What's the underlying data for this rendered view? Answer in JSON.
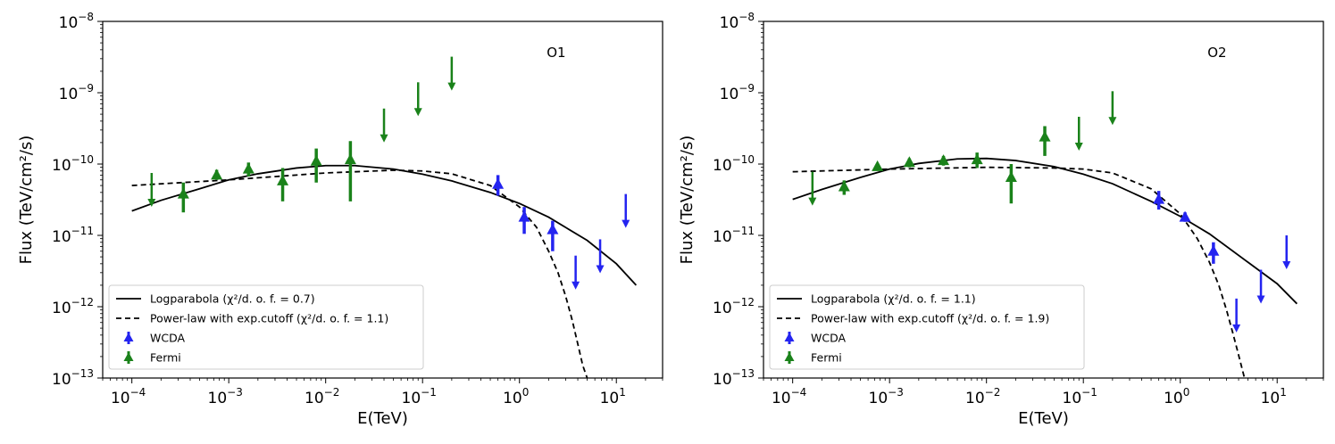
{
  "chart_data": [
    {
      "type": "scatter",
      "panel_label": "O1",
      "xlabel": "E(TeV)",
      "ylabel": "Flux (TeV/cm²/s)",
      "xscale": "log",
      "yscale": "log",
      "xlim": [
        5e-05,
        30
      ],
      "ylim": [
        1e-13,
        1e-08
      ],
      "xticks": [
        {
          "value": 0.0001,
          "base": "10",
          "exp": "−4"
        },
        {
          "value": 0.001,
          "base": "10",
          "exp": "−3"
        },
        {
          "value": 0.01,
          "base": "10",
          "exp": "−2"
        },
        {
          "value": 0.1,
          "base": "10",
          "exp": "−1"
        },
        {
          "value": 1,
          "base": "10",
          "exp": "0"
        },
        {
          "value": 10,
          "base": "10",
          "exp": "1"
        }
      ],
      "yticks": [
        {
          "value": 1e-13,
          "base": "10",
          "exp": "−13"
        },
        {
          "value": 1e-12,
          "base": "10",
          "exp": "−12"
        },
        {
          "value": 1e-11,
          "base": "10",
          "exp": "−11"
        },
        {
          "value": 1e-10,
          "base": "10",
          "exp": "−10"
        },
        {
          "value": 1e-09,
          "base": "10",
          "exp": "−9"
        },
        {
          "value": 1e-08,
          "base": "10",
          "exp": "−8"
        }
      ],
      "legend": {
        "position": "lower-left",
        "entries": [
          {
            "label": "Logparabola (χ²/d. o. f.  = 0.7)",
            "style": "solid"
          },
          {
            "label": "Power-law with exp.cutoff (χ²/d. o. f.  = 1.1)",
            "style": "dashed"
          },
          {
            "label": "WCDA",
            "style": "blue-marker"
          },
          {
            "label": "Fermi",
            "style": "green-marker"
          }
        ]
      },
      "series": [
        {
          "name": "Logparabola",
          "style": "solid",
          "points": [
            [
              0.0001,
              2.2e-11
            ],
            [
              0.0002,
              3.1e-11
            ],
            [
              0.0005,
              4.5e-11
            ],
            [
              0.001,
              6e-11
            ],
            [
              0.002,
              7.3e-11
            ],
            [
              0.005,
              8.8e-11
            ],
            [
              0.01,
              9.5e-11
            ],
            [
              0.02,
              9.5e-11
            ],
            [
              0.05,
              8.5e-11
            ],
            [
              0.1,
              7.2e-11
            ],
            [
              0.2,
              5.8e-11
            ],
            [
              0.5,
              4e-11
            ],
            [
              1,
              2.8e-11
            ],
            [
              2,
              1.8e-11
            ],
            [
              5,
              8.5e-12
            ],
            [
              10,
              4e-12
            ],
            [
              16,
              2e-12
            ]
          ]
        },
        {
          "name": "Power-law with exp.cutoff",
          "style": "dashed",
          "points": [
            [
              0.0001,
              5e-11
            ],
            [
              0.001,
              6e-11
            ],
            [
              0.01,
              7.5e-11
            ],
            [
              0.05,
              8.2e-11
            ],
            [
              0.1,
              8e-11
            ],
            [
              0.2,
              7.3e-11
            ],
            [
              0.5,
              5e-11
            ],
            [
              1,
              2.5e-11
            ],
            [
              1.5,
              1.3e-11
            ],
            [
              2,
              6e-12
            ],
            [
              2.5,
              3e-12
            ],
            [
              3,
              1.4e-12
            ],
            [
              3.5,
              6.5e-13
            ],
            [
              4,
              3e-13
            ],
            [
              4.5,
              1.5e-13
            ],
            [
              5,
              1e-13
            ]
          ]
        },
        {
          "name": "Fermi",
          "color": "#1a821a",
          "points": [
            {
              "x": 0.00034,
              "y": 3.8e-11,
              "lo": 2.1e-11,
              "hi": 5.5e-11
            },
            {
              "x": 0.00075,
              "y": 7e-11,
              "lo": 6e-11,
              "hi": 8.3e-11
            },
            {
              "x": 0.0016,
              "y": 8.5e-11,
              "lo": 6.7e-11,
              "hi": 1.05e-10
            },
            {
              "x": 0.0036,
              "y": 5.8e-11,
              "lo": 3e-11,
              "hi": 8.8e-11
            },
            {
              "x": 0.008,
              "y": 1.1e-10,
              "lo": 5.5e-11,
              "hi": 1.65e-10
            },
            {
              "x": 0.018,
              "y": 1.15e-10,
              "lo": 3e-11,
              "hi": 2.1e-10
            }
          ]
        },
        {
          "name": "Fermi upper limits",
          "color": "#1a821a",
          "upper_limits": [
            {
              "x": 0.00016,
              "y": 7.5e-11
            },
            {
              "x": 0.04,
              "y": 6e-10
            },
            {
              "x": 0.09,
              "y": 1.4e-09
            },
            {
              "x": 0.2,
              "y": 3.2e-09
            }
          ]
        },
        {
          "name": "WCDA",
          "color": "#2424f0",
          "points": [
            {
              "x": 0.6,
              "y": 5.2e-11,
              "lo": 3.6e-11,
              "hi": 7e-11
            },
            {
              "x": 1.12,
              "y": 1.8e-11,
              "lo": 1.05e-11,
              "hi": 2.5e-11
            },
            {
              "x": 2.2,
              "y": 1.2e-11,
              "lo": 6e-12,
              "hi": 1.6e-11
            }
          ]
        },
        {
          "name": "WCDA upper limits",
          "color": "#2424f0",
          "upper_limits": [
            {
              "x": 3.8,
              "y": 5.2e-12
            },
            {
              "x": 6.8,
              "y": 8.8e-12
            },
            {
              "x": 12.5,
              "y": 3.8e-11
            }
          ]
        }
      ]
    },
    {
      "type": "scatter",
      "panel_label": "O2",
      "xlabel": "E(TeV)",
      "ylabel": "Flux (TeV/cm²/s)",
      "xscale": "log",
      "yscale": "log",
      "xlim": [
        5e-05,
        30
      ],
      "ylim": [
        1e-13,
        1e-08
      ],
      "xticks": [
        {
          "value": 0.0001,
          "base": "10",
          "exp": "−4"
        },
        {
          "value": 0.001,
          "base": "10",
          "exp": "−3"
        },
        {
          "value": 0.01,
          "base": "10",
          "exp": "−2"
        },
        {
          "value": 0.1,
          "base": "10",
          "exp": "−1"
        },
        {
          "value": 1,
          "base": "10",
          "exp": "0"
        },
        {
          "value": 10,
          "base": "10",
          "exp": "1"
        }
      ],
      "yticks": [
        {
          "value": 1e-13,
          "base": "10",
          "exp": "−13"
        },
        {
          "value": 1e-12,
          "base": "10",
          "exp": "−12"
        },
        {
          "value": 1e-11,
          "base": "10",
          "exp": "−11"
        },
        {
          "value": 1e-10,
          "base": "10",
          "exp": "−10"
        },
        {
          "value": 1e-09,
          "base": "10",
          "exp": "−9"
        },
        {
          "value": 1e-08,
          "base": "10",
          "exp": "−8"
        }
      ],
      "legend": {
        "position": "lower-left",
        "entries": [
          {
            "label": "Logparabola (χ²/d. o. f.  = 1.1)",
            "style": "solid"
          },
          {
            "label": "Power-law with exp.cutoff (χ²/d. o. f.  = 1.9)",
            "style": "dashed"
          },
          {
            "label": "WCDA",
            "style": "blue-marker"
          },
          {
            "label": "Fermi",
            "style": "green-marker"
          }
        ]
      },
      "series": [
        {
          "name": "Logparabola",
          "style": "solid",
          "points": [
            [
              0.0001,
              3.2e-11
            ],
            [
              0.0002,
              4.4e-11
            ],
            [
              0.0005,
              6.5e-11
            ],
            [
              0.001,
              8.5e-11
            ],
            [
              0.002,
              1.02e-10
            ],
            [
              0.005,
              1.18e-10
            ],
            [
              0.01,
              1.2e-10
            ],
            [
              0.02,
              1.12e-10
            ],
            [
              0.05,
              9.2e-11
            ],
            [
              0.1,
              7.2e-11
            ],
            [
              0.2,
              5.3e-11
            ],
            [
              0.5,
              3e-11
            ],
            [
              1,
              1.85e-11
            ],
            [
              2,
              1.05e-11
            ],
            [
              5,
              4.2e-12
            ],
            [
              10,
              2.1e-12
            ],
            [
              16,
              1.1e-12
            ]
          ]
        },
        {
          "name": "Power-law with exp.cutoff",
          "style": "dashed",
          "points": [
            [
              0.0001,
              7.8e-11
            ],
            [
              0.001,
              8.5e-11
            ],
            [
              0.01,
              9e-11
            ],
            [
              0.05,
              8.8e-11
            ],
            [
              0.1,
              8.5e-11
            ],
            [
              0.2,
              7.5e-11
            ],
            [
              0.5,
              4.5e-11
            ],
            [
              1,
              2e-11
            ],
            [
              1.5,
              9e-12
            ],
            [
              2,
              4.2e-12
            ],
            [
              2.5,
              2e-12
            ],
            [
              3,
              9e-13
            ],
            [
              3.5,
              4.2e-13
            ],
            [
              4,
              2.1e-13
            ],
            [
              4.6,
              1e-13
            ]
          ]
        },
        {
          "name": "Fermi",
          "color": "#1a821a",
          "points": [
            {
              "x": 0.00034,
              "y": 4.8e-11,
              "lo": 3.7e-11,
              "hi": 5.9e-11
            },
            {
              "x": 0.00075,
              "y": 9.2e-11,
              "lo": 8.3e-11,
              "hi": 1e-10
            },
            {
              "x": 0.0016,
              "y": 1.05e-10,
              "lo": 9e-11,
              "hi": 1.2e-10
            },
            {
              "x": 0.0036,
              "y": 1.12e-10,
              "lo": 9.5e-11,
              "hi": 1.3e-10
            },
            {
              "x": 0.008,
              "y": 1.15e-10,
              "lo": 8.8e-11,
              "hi": 1.45e-10
            },
            {
              "x": 0.018,
              "y": 6.5e-11,
              "lo": 2.8e-11,
              "hi": 1e-10
            },
            {
              "x": 0.04,
              "y": 2.4e-10,
              "lo": 1.3e-10,
              "hi": 3.4e-10
            }
          ]
        },
        {
          "name": "Fermi upper limits",
          "color": "#1a821a",
          "upper_limits": [
            {
              "x": 0.00016,
              "y": 7.8e-11
            },
            {
              "x": 0.09,
              "y": 4.6e-10
            },
            {
              "x": 0.2,
              "y": 1.05e-09
            }
          ]
        },
        {
          "name": "WCDA",
          "color": "#2424f0",
          "points": [
            {
              "x": 0.6,
              "y": 3.2e-11,
              "lo": 2.3e-11,
              "hi": 4.2e-11
            },
            {
              "x": 1.12,
              "y": 1.8e-11,
              "lo": 1.55e-11,
              "hi": 2.1e-11
            },
            {
              "x": 2.2,
              "y": 6e-12,
              "lo": 4e-12,
              "hi": 8e-12
            }
          ]
        },
        {
          "name": "WCDA upper limits",
          "color": "#2424f0",
          "upper_limits": [
            {
              "x": 3.8,
              "y": 1.3e-12
            },
            {
              "x": 6.8,
              "y": 3.3e-12
            },
            {
              "x": 12.5,
              "y": 1e-11
            }
          ]
        }
      ]
    }
  ]
}
